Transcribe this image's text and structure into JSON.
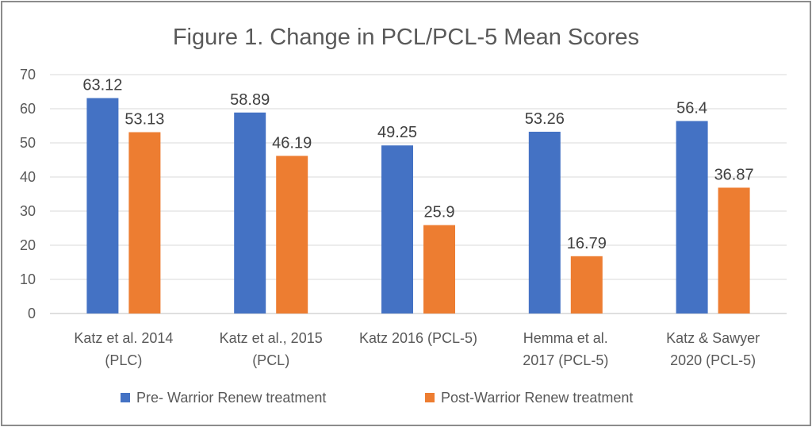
{
  "chart_data": {
    "type": "bar",
    "title": "Figure 1. Change in PCL/PCL-5 Mean Scores",
    "categories": [
      [
        "Katz et al. 2014",
        "(PLC)"
      ],
      [
        "Katz et al., 2015",
        "(PCL)"
      ],
      [
        "Katz 2016 (PCL-5)"
      ],
      [
        "Hemma et al.",
        "2017 (PCL-5)"
      ],
      [
        "Katz & Sawyer",
        "2020 (PCL-5)"
      ]
    ],
    "series": [
      {
        "name": "Pre- Warrior Renew treatment",
        "color": "#4472c4",
        "values": [
          63.12,
          58.89,
          49.25,
          53.26,
          56.4
        ]
      },
      {
        "name": "Post-Warrior Renew treatment",
        "color": "#ed7d31",
        "values": [
          53.13,
          46.19,
          25.9,
          16.79,
          36.87
        ]
      }
    ],
    "yticks": [
      0,
      10,
      20,
      30,
      40,
      50,
      60,
      70
    ],
    "ylim": [
      0,
      70
    ],
    "xlabel": "",
    "ylabel": "",
    "grid": true,
    "legend_position": "bottom"
  }
}
